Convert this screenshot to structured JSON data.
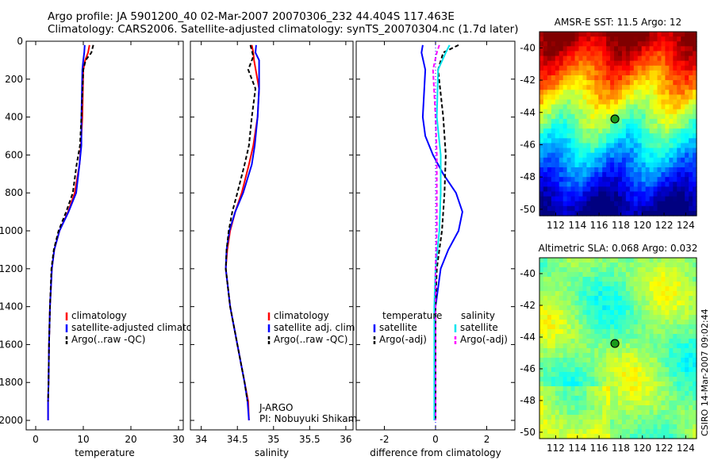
{
  "header": {
    "line1": "Argo profile: JA 5901200_40 02-Mar-2007 20070306_232 44.404S 117.463E",
    "line2": "Climatology: CARS2006. Satellite-adjusted climatology: synTS_20070304.nc (1.7d later)"
  },
  "signature": "CSIRO 14-Mar-2007 09:02:44",
  "colors": {
    "red": "#ff0000",
    "blue": "#0000ff",
    "black": "#000000",
    "cyan": "#00e5ee",
    "magenta": "#ff00ff"
  },
  "chart_data": [
    {
      "type": "line",
      "xlabel": "temperature",
      "ylabel": "",
      "xlim": [
        -2,
        31
      ],
      "ylim": [
        2050,
        0
      ],
      "xticks": [
        0,
        10,
        20,
        30
      ],
      "yticks": [
        0,
        200,
        400,
        600,
        800,
        1000,
        1200,
        1400,
        1600,
        1800,
        2000
      ],
      "legend": {
        "placement": "lower-right",
        "entries": [
          "climatology",
          "satellite-adjusted climatology",
          "Argo(..raw -QC)"
        ]
      },
      "series": [
        {
          "name": "climatology",
          "color": "red",
          "dash": "solid",
          "x": [
            11.3,
            11.0,
            10.4,
            10.0,
            9.8,
            9.5,
            9.2,
            8.2,
            6.8,
            5.0,
            3.9,
            3.4,
            3.0,
            2.8,
            2.7,
            2.6,
            2.6
          ],
          "y": [
            20,
            60,
            100,
            150,
            400,
            550,
            650,
            800,
            900,
            1000,
            1100,
            1200,
            1400,
            1600,
            1800,
            1900,
            2000
          ]
        },
        {
          "name": "satellite-adjusted climatology",
          "color": "blue",
          "dash": "solid",
          "x": [
            10.3,
            10.2,
            10.0,
            9.8,
            9.6,
            9.6,
            9.2,
            8.5,
            6.9,
            5.0,
            3.9,
            3.4,
            3.0,
            2.8,
            2.7,
            2.6,
            2.6
          ],
          "y": [
            20,
            60,
            100,
            150,
            400,
            550,
            650,
            800,
            900,
            1000,
            1100,
            1200,
            1400,
            1600,
            1800,
            1900,
            2000
          ]
        },
        {
          "name": "Argo(..raw -QC)",
          "color": "black",
          "dash": "dashed",
          "x": [
            12.1,
            11.7,
            10.5,
            10.0,
            9.6,
            9.3,
            8.6,
            7.8,
            6.4,
            4.8,
            3.8,
            3.3,
            3.0,
            2.8,
            2.7,
            2.6
          ],
          "y": [
            20,
            60,
            100,
            150,
            400,
            550,
            650,
            800,
            900,
            1000,
            1100,
            1200,
            1400,
            1600,
            1800,
            1900
          ]
        }
      ]
    },
    {
      "type": "line",
      "xlabel": "salinity",
      "ylabel": "",
      "xlim": [
        33.85,
        36.1
      ],
      "ylim": [
        2050,
        0
      ],
      "xticks": [
        34,
        34.5,
        35,
        35.5,
        36
      ],
      "xticklabels": [
        "34",
        "34.5",
        "35",
        "35.5",
        "36"
      ],
      "legend": {
        "placement": "lower-right",
        "entries": [
          "climatology",
          "satellite adj. clim.",
          "Argo(..raw -QC)"
        ]
      },
      "annotations": [
        "J-ARGO",
        "PI: Nobuyuki Shikama"
      ],
      "series": [
        {
          "name": "climatology",
          "color": "red",
          "dash": "solid",
          "x": [
            34.7,
            34.72,
            34.73,
            34.8,
            34.78,
            34.72,
            34.66,
            34.56,
            34.47,
            34.4,
            34.36,
            34.34,
            34.4,
            34.5,
            34.6,
            34.65,
            34.66
          ],
          "y": [
            20,
            60,
            100,
            250,
            400,
            550,
            650,
            800,
            900,
            1000,
            1100,
            1200,
            1400,
            1600,
            1800,
            1900,
            2000
          ]
        },
        {
          "name": "satellite adj. clim.",
          "color": "blue",
          "dash": "solid",
          "x": [
            34.76,
            34.75,
            34.8,
            34.8,
            34.78,
            34.74,
            34.7,
            34.58,
            34.47,
            34.39,
            34.35,
            34.34,
            34.4,
            34.5,
            34.6,
            34.64,
            34.66
          ],
          "y": [
            20,
            60,
            100,
            250,
            400,
            550,
            650,
            800,
            900,
            1000,
            1100,
            1200,
            1400,
            1600,
            1800,
            1900,
            2000
          ]
        },
        {
          "name": "Argo(..raw -QC)",
          "color": "black",
          "dash": "dashed",
          "x": [
            34.68,
            34.72,
            34.65,
            34.75,
            34.7,
            34.66,
            34.6,
            34.5,
            34.43,
            34.38,
            34.35,
            34.34,
            34.4,
            34.5,
            34.6,
            34.64
          ],
          "y": [
            20,
            80,
            150,
            250,
            400,
            550,
            650,
            800,
            900,
            1000,
            1100,
            1200,
            1400,
            1600,
            1800,
            1900
          ]
        }
      ]
    },
    {
      "type": "line",
      "xlabel": "difference from climatology",
      "ylabel": "",
      "xlim": [
        -3.1,
        3.1
      ],
      "ylim": [
        2050,
        0
      ],
      "xticks": [
        -2,
        0,
        2
      ],
      "legend": {
        "placement": "lower-left",
        "entries": [
          "temperature",
          "satellite",
          "Argo(-adj)",
          "salinity",
          "satellite",
          "Argo(-adj)"
        ]
      },
      "series": [
        {
          "name": "temperature satellite",
          "color": "blue",
          "dash": "solid",
          "x": [
            -0.5,
            -0.55,
            -0.4,
            -0.5,
            -0.4,
            -0.1,
            0.3,
            0.8,
            1.05,
            0.9,
            0.5,
            0.2,
            0.0,
            0.0
          ],
          "y": [
            20,
            60,
            150,
            400,
            500,
            600,
            700,
            800,
            900,
            1000,
            1100,
            1200,
            1400,
            2000
          ]
        },
        {
          "name": "temperature Argo(-adj)",
          "color": "black",
          "dash": "dashed",
          "x": [
            0.9,
            0.3,
            0.1,
            0.3,
            0.4,
            0.35,
            0.25,
            0.15,
            0.05,
            0.0,
            0.0
          ],
          "y": [
            20,
            60,
            150,
            400,
            600,
            800,
            1000,
            1100,
            1200,
            1400,
            2000
          ]
        },
        {
          "name": "salinity satellite",
          "color": "cyan",
          "dash": "solid",
          "x": [
            0.55,
            0.4,
            0.1,
            0.05,
            0.2,
            0.2,
            0.15,
            0.0,
            -0.05,
            -0.05,
            -0.05
          ],
          "y": [
            20,
            60,
            150,
            400,
            600,
            800,
            1000,
            1200,
            1400,
            1800,
            2000
          ]
        },
        {
          "name": "salinity Argo(-adj)",
          "color": "magenta",
          "dash": "dashed",
          "x": [
            0.15,
            0.05,
            -0.1,
            0.0,
            0.05,
            0.05,
            0.05,
            0.0,
            0.0
          ],
          "y": [
            20,
            60,
            150,
            400,
            600,
            800,
            1000,
            1200,
            2000
          ]
        }
      ]
    },
    {
      "type": "heatmap",
      "title": "AMSR-E SST: 11.5 Argo: 12",
      "xlim": [
        110.5,
        125
      ],
      "ylim": [
        -50.4,
        -39
      ],
      "xticks": [
        112,
        114,
        116,
        118,
        120,
        122,
        124
      ],
      "yticks": [
        -40,
        -42,
        -44,
        -46,
        -48,
        -50
      ],
      "marker": {
        "lon": 117.463,
        "lat": -44.404
      }
    },
    {
      "type": "heatmap",
      "title": "Altimetric SLA: 0.068 Argo: 0.032",
      "xlim": [
        110.5,
        125
      ],
      "ylim": [
        -50.4,
        -39
      ],
      "xticks": [
        112,
        114,
        116,
        118,
        120,
        122,
        124
      ],
      "yticks": [
        -40,
        -42,
        -44,
        -46,
        -48,
        -50
      ],
      "marker": {
        "lon": 117.463,
        "lat": -44.404
      }
    }
  ]
}
